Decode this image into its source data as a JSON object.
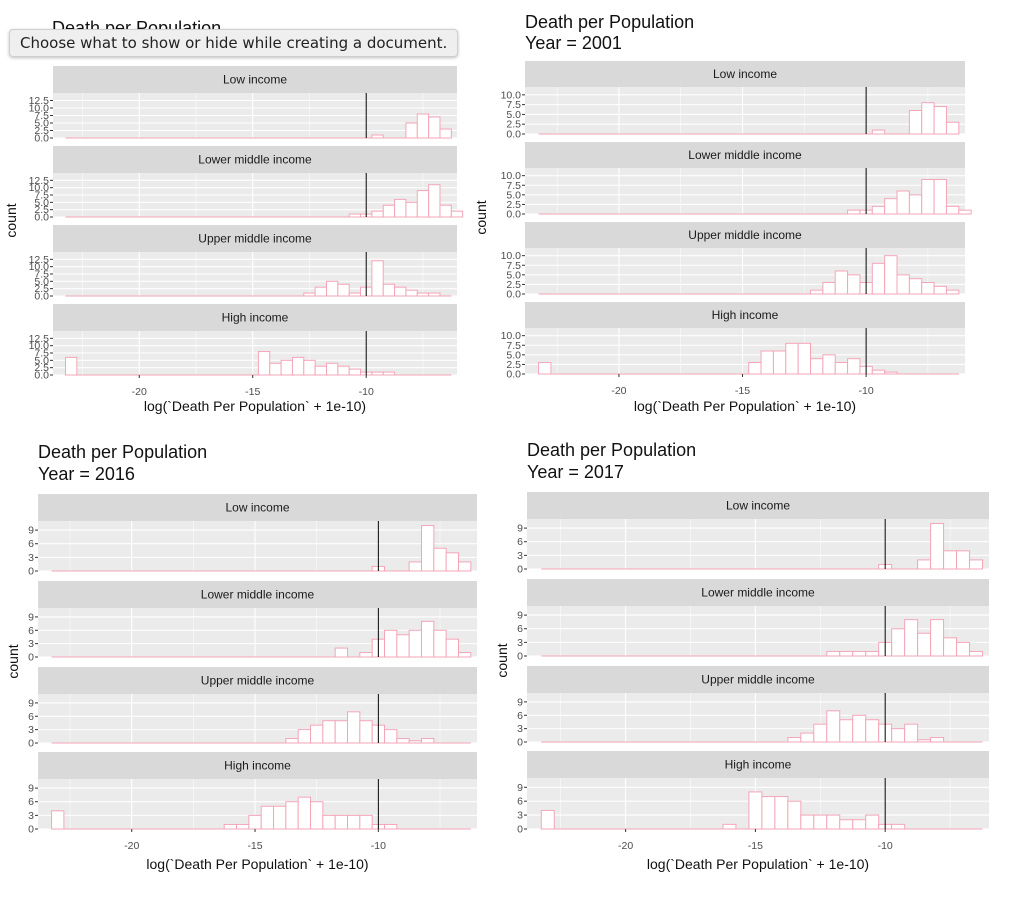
{
  "tooltip": {
    "text": "Choose what to show or hide while creating a document."
  },
  "colors": {
    "bar_outline": "#f4a6b8",
    "bar_fill": "#ffffff",
    "panel_bg": "#ebebeb",
    "strip_bg": "#d9d9d9",
    "grid": "#ffffff",
    "vline": "#000000"
  },
  "chart_data": [
    {
      "type": "bar",
      "title": "Death per Population",
      "subtitle": "",
      "xlabel": "log(`Death Per Population` + 1e-10)",
      "ylabel": "count",
      "xlim": [
        -23.8,
        -6.0
      ],
      "xticks": [
        -20,
        -15,
        -10
      ],
      "ylim": [
        0,
        15
      ],
      "yticks": [
        "0.0",
        "2.5",
        "5.0",
        "7.5",
        "10.0",
        "12.5"
      ],
      "vline": -10,
      "binwidth": 0.5,
      "series": [
        {
          "name": "Low income",
          "bins": [
            [
              -23,
              0
            ],
            [
              -9.5,
              1
            ],
            [
              -8,
              5
            ],
            [
              -7.5,
              8
            ],
            [
              -7,
              7
            ],
            [
              -6.5,
              3
            ]
          ]
        },
        {
          "name": "Lower middle income",
          "bins": [
            [
              -23,
              0
            ],
            [
              -10.5,
              1
            ],
            [
              -10,
              1
            ],
            [
              -9.5,
              2
            ],
            [
              -9,
              4
            ],
            [
              -8.5,
              6
            ],
            [
              -8,
              5
            ],
            [
              -7.5,
              9
            ],
            [
              -7,
              11
            ],
            [
              -6.5,
              4
            ],
            [
              -6,
              2
            ]
          ]
        },
        {
          "name": "Upper middle income",
          "bins": [
            [
              -23,
              0
            ],
            [
              -12.5,
              1
            ],
            [
              -12,
              3
            ],
            [
              -11.5,
              5
            ],
            [
              -11,
              4
            ],
            [
              -10.5,
              1
            ],
            [
              -10,
              3
            ],
            [
              -9.5,
              12
            ],
            [
              -9,
              4
            ],
            [
              -8.5,
              3
            ],
            [
              -8,
              2
            ],
            [
              -7.5,
              1
            ],
            [
              -7,
              1
            ]
          ]
        },
        {
          "name": "High income",
          "bins": [
            [
              -23,
              6
            ],
            [
              -14.5,
              8
            ],
            [
              -14,
              4
            ],
            [
              -13.5,
              5
            ],
            [
              -13,
              6
            ],
            [
              -12.5,
              5
            ],
            [
              -12,
              3
            ],
            [
              -11.5,
              4
            ],
            [
              -11,
              3
            ],
            [
              -10.5,
              2
            ],
            [
              -10,
              1
            ],
            [
              -9.5,
              1
            ],
            [
              -9,
              1
            ]
          ]
        }
      ]
    },
    {
      "type": "bar",
      "title": "Death per Population",
      "subtitle": "Year = 2001",
      "xlabel": "log(`Death Per Population` + 1e-10)",
      "ylabel": "count",
      "xlim": [
        -23.8,
        -6.0
      ],
      "xticks": [
        -20,
        -15,
        -10
      ],
      "ylim": [
        0,
        12
      ],
      "yticks": [
        "0.0",
        "2.5",
        "5.0",
        "7.5",
        "10.0"
      ],
      "vline": -10,
      "binwidth": 0.5,
      "series": [
        {
          "name": "Low income",
          "bins": [
            [
              -23,
              0
            ],
            [
              -9.5,
              1
            ],
            [
              -8,
              6
            ],
            [
              -7.5,
              8
            ],
            [
              -7,
              7
            ],
            [
              -6.5,
              3
            ]
          ]
        },
        {
          "name": "Lower middle income",
          "bins": [
            [
              -23,
              0
            ],
            [
              -10.5,
              1
            ],
            [
              -10,
              1
            ],
            [
              -9.5,
              2
            ],
            [
              -9,
              4
            ],
            [
              -8.5,
              6
            ],
            [
              -8,
              5
            ],
            [
              -7.5,
              9
            ],
            [
              -7,
              9
            ],
            [
              -6.5,
              2
            ],
            [
              -6,
              1
            ]
          ]
        },
        {
          "name": "Upper middle income",
          "bins": [
            [
              -23,
              0
            ],
            [
              -12,
              1
            ],
            [
              -11.5,
              3
            ],
            [
              -11,
              6
            ],
            [
              -10.5,
              5
            ],
            [
              -10,
              3
            ],
            [
              -9.5,
              8
            ],
            [
              -9,
              10
            ],
            [
              -8.5,
              5
            ],
            [
              -8,
              4
            ],
            [
              -7.5,
              3
            ],
            [
              -7,
              2
            ],
            [
              -6.5,
              1
            ]
          ]
        },
        {
          "name": "High income",
          "bins": [
            [
              -23,
              3
            ],
            [
              -14.5,
              3
            ],
            [
              -14,
              6
            ],
            [
              -13.5,
              6
            ],
            [
              -13,
              8
            ],
            [
              -12.5,
              8
            ],
            [
              -12,
              4
            ],
            [
              -11.5,
              5
            ],
            [
              -11,
              3
            ],
            [
              -10.5,
              4
            ],
            [
              -10,
              2
            ],
            [
              -9.5,
              1
            ],
            [
              -9,
              0.5
            ]
          ]
        }
      ]
    },
    {
      "type": "bar",
      "title": "Death per Population",
      "subtitle": "Year = 2016",
      "xlabel": "log(`Death Per Population` + 1e-10)",
      "ylabel": "count",
      "xlim": [
        -23.8,
        -6.0
      ],
      "xticks": [
        -20,
        -15,
        -10
      ],
      "ylim": [
        0,
        11
      ],
      "yticks": [
        "0",
        "3",
        "6",
        "9"
      ],
      "vline": -10,
      "binwidth": 0.5,
      "series": [
        {
          "name": "Low income",
          "bins": [
            [
              -23,
              0
            ],
            [
              -10,
              1
            ],
            [
              -8.5,
              2
            ],
            [
              -8,
              10
            ],
            [
              -7.5,
              5
            ],
            [
              -7,
              4
            ],
            [
              -6.5,
              2
            ]
          ]
        },
        {
          "name": "Lower middle income",
          "bins": [
            [
              -23,
              0
            ],
            [
              -11.5,
              2
            ],
            [
              -10.5,
              1
            ],
            [
              -10,
              4
            ],
            [
              -9.5,
              6
            ],
            [
              -9,
              5
            ],
            [
              -8.5,
              6
            ],
            [
              -8,
              8
            ],
            [
              -7.5,
              6
            ],
            [
              -7,
              4
            ],
            [
              -6.5,
              1
            ]
          ]
        },
        {
          "name": "Upper middle income",
          "bins": [
            [
              -23,
              0
            ],
            [
              -13.5,
              1
            ],
            [
              -13,
              3
            ],
            [
              -12.5,
              4
            ],
            [
              -12,
              5
            ],
            [
              -11.5,
              5
            ],
            [
              -11,
              7
            ],
            [
              -10.5,
              5
            ],
            [
              -10,
              4
            ],
            [
              -9.5,
              3
            ],
            [
              -9,
              1
            ],
            [
              -8.5,
              0.5
            ],
            [
              -8,
              1
            ]
          ]
        },
        {
          "name": "High income",
          "bins": [
            [
              -23,
              4
            ],
            [
              -16,
              1
            ],
            [
              -15.5,
              1
            ],
            [
              -15,
              3
            ],
            [
              -14.5,
              5
            ],
            [
              -14,
              5
            ],
            [
              -13.5,
              6
            ],
            [
              -13,
              7
            ],
            [
              -12.5,
              6
            ],
            [
              -12,
              3
            ],
            [
              -11.5,
              3
            ],
            [
              -11,
              3
            ],
            [
              -10.5,
              3
            ],
            [
              -10,
              1
            ],
            [
              -9.5,
              1
            ]
          ]
        }
      ]
    },
    {
      "type": "bar",
      "title": "Death per Population",
      "subtitle": "Year = 2017",
      "xlabel": "log(`Death Per Population` + 1e-10)",
      "ylabel": "count",
      "xlim": [
        -23.8,
        -6.0
      ],
      "xticks": [
        -20,
        -15,
        -10
      ],
      "ylim": [
        0,
        11
      ],
      "yticks": [
        "0",
        "3",
        "6",
        "9"
      ],
      "vline": -10,
      "binwidth": 0.5,
      "series": [
        {
          "name": "Low income",
          "bins": [
            [
              -23,
              0
            ],
            [
              -10,
              1
            ],
            [
              -8.5,
              2
            ],
            [
              -8,
              10
            ],
            [
              -7.5,
              4
            ],
            [
              -7,
              4
            ],
            [
              -6.5,
              2
            ]
          ]
        },
        {
          "name": "Lower middle income",
          "bins": [
            [
              -23,
              0
            ],
            [
              -12,
              1
            ],
            [
              -11.5,
              1
            ],
            [
              -11,
              1
            ],
            [
              -10.5,
              1
            ],
            [
              -10,
              3
            ],
            [
              -9.5,
              6
            ],
            [
              -9,
              8
            ],
            [
              -8.5,
              5
            ],
            [
              -8,
              8
            ],
            [
              -7.5,
              4
            ],
            [
              -7,
              3
            ],
            [
              -6.5,
              1
            ]
          ]
        },
        {
          "name": "Upper middle income",
          "bins": [
            [
              -23,
              0
            ],
            [
              -13.5,
              1
            ],
            [
              -13,
              2
            ],
            [
              -12.5,
              4
            ],
            [
              -12,
              7
            ],
            [
              -11.5,
              5
            ],
            [
              -11,
              6
            ],
            [
              -10.5,
              5
            ],
            [
              -10,
              4
            ],
            [
              -9.5,
              3
            ],
            [
              -9,
              4
            ],
            [
              -8.5,
              0.5
            ],
            [
              -8,
              1
            ]
          ]
        },
        {
          "name": "High income",
          "bins": [
            [
              -23,
              4
            ],
            [
              -16,
              1
            ],
            [
              -15,
              8
            ],
            [
              -14.5,
              7
            ],
            [
              -14,
              7
            ],
            [
              -13.5,
              6
            ],
            [
              -13,
              3
            ],
            [
              -12.5,
              3
            ],
            [
              -12,
              3
            ],
            [
              -11.5,
              2
            ],
            [
              -11,
              2
            ],
            [
              -10.5,
              3
            ],
            [
              -10,
              1
            ],
            [
              -9.5,
              1
            ]
          ]
        }
      ]
    }
  ]
}
